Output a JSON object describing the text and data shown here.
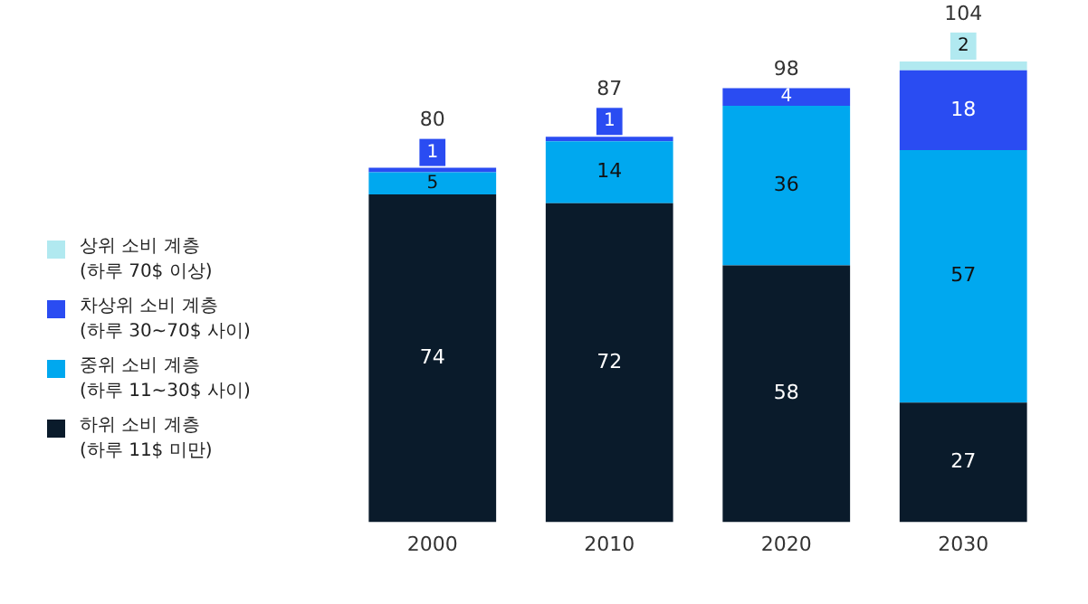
{
  "chart_data": {
    "type": "bar",
    "stacked": true,
    "categories": [
      "2000",
      "2010",
      "2020",
      "2030"
    ],
    "ylim": [
      0,
      104
    ],
    "tick_labels": "x",
    "grid": false,
    "legend": "left",
    "data_labels": true,
    "totals": [
      "80",
      "87",
      "98",
      "104"
    ],
    "series": [
      {
        "name": "하위 소비 계층\n(하루 11$ 미만)",
        "color": "#0a1b2b",
        "values": [
          74,
          72,
          58,
          27
        ]
      },
      {
        "name": "중위 소비 계층\n(하루 11~30$ 사이)",
        "color": "#00a8ef",
        "values": [
          5,
          14,
          36,
          57
        ]
      },
      {
        "name": "차상위 소비 계층\n(하루 30~70$ 사이)",
        "color": "#2a4cf2",
        "values": [
          1,
          1,
          4,
          18
        ]
      },
      {
        "name": "상위 소비 계층\n(하루 70$ 이상)",
        "color": "#b1e9f0",
        "values": [
          null,
          null,
          null,
          2
        ]
      }
    ]
  }
}
